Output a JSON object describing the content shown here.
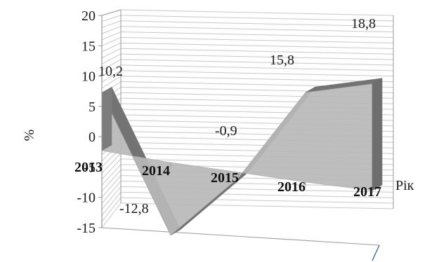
{
  "chart_data": {
    "type": "area",
    "categories": [
      "2013",
      "2014",
      "2015",
      "2016",
      "2017"
    ],
    "values": [
      10.2,
      -12.8,
      -0.9,
      15.8,
      18.8
    ],
    "data_labels": [
      "10,2",
      "-12,8",
      "-0,9",
      "15,8",
      "18,8"
    ],
    "y_ticks": [
      "20",
      "15",
      "10",
      "5",
      "0",
      "-5",
      "-10",
      "-15"
    ],
    "ylim": [
      -15,
      20
    ],
    "ylabel": "%",
    "xlabel": "Рік",
    "grid": true,
    "three_d": true,
    "colors": {
      "area": "#b8b8b8",
      "area_side": "#737373",
      "grid": "#c8c8c8",
      "frame": "#9a9a9a",
      "floor": "#4a6fa5"
    }
  }
}
